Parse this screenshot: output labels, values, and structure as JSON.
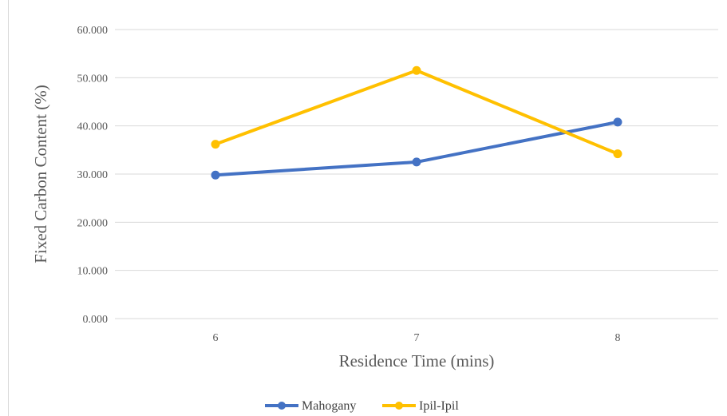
{
  "chart_data": {
    "type": "line",
    "categories": [
      "6",
      "7",
      "8"
    ],
    "series": [
      {
        "name": "Mahogany",
        "values": [
          29.8,
          32.5,
          40.8
        ],
        "color": "#4472C4"
      },
      {
        "name": "Ipil-Ipil",
        "values": [
          36.2,
          51.5,
          34.2
        ],
        "color": "#FFC000"
      }
    ],
    "title": "",
    "xlabel": "Residence Time (mins)",
    "ylabel": "Fixed Carbon Content (%)",
    "ylim": [
      0,
      60
    ],
    "yticks": [
      "0.000",
      "10.000",
      "20.000",
      "30.000",
      "40.000",
      "50.000",
      "60.000"
    ],
    "grid": true,
    "legend_position": "bottom"
  }
}
